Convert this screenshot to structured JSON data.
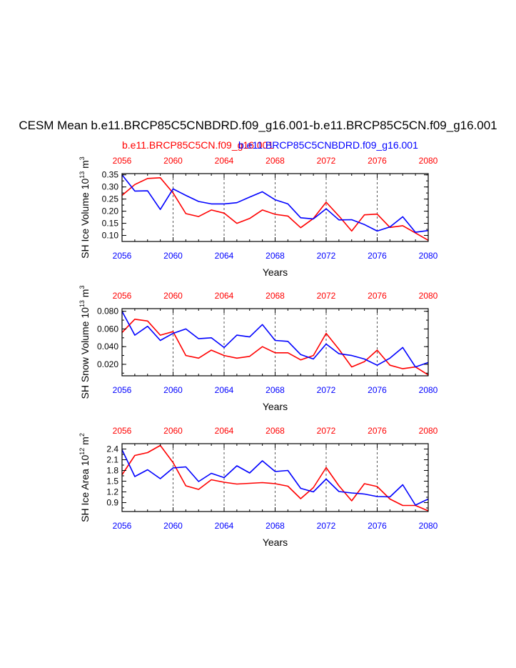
{
  "page": {
    "title": "CESM Mean b.e11.BRCP85C5CNBDRD.f09_g16.001-b.e11.BRCP85C5CN.f09_g16.001",
    "legend": [
      {
        "name": "b.e11.BRCP85C5CN.f09_g16.001",
        "color": "#ff0000"
      },
      {
        "name": "b.e11.BRCP85C5CNBDRD.f09_g16.001",
        "color": "#0000ff"
      }
    ]
  },
  "chart_data": [
    {
      "type": "line",
      "title": "",
      "xlabel": "Years",
      "ylabel": "SH Ice Volume 10",
      "ylabel_sup": "13",
      "ylabel_unit": " m",
      "ylabel_unit_sup": "3",
      "xlim": [
        2056,
        2080
      ],
      "ylim": [
        0.075,
        0.355
      ],
      "yticks": [
        "0.35",
        "0.30",
        "0.25",
        "0.20",
        "0.15",
        "0.10"
      ],
      "xticks": [
        "2056",
        "2060",
        "2064",
        "2068",
        "2072",
        "2076",
        "2080"
      ],
      "x": [
        2056,
        2057,
        2058,
        2059,
        2060,
        2061,
        2062,
        2063,
        2064,
        2065,
        2066,
        2067,
        2068,
        2069,
        2070,
        2071,
        2072,
        2073,
        2074,
        2075,
        2076,
        2077,
        2078,
        2079,
        2080
      ],
      "series": [
        {
          "name": "b.e11.BRCP85C5CN.f09_g16.001",
          "color": "#ff0000",
          "values": [
            0.265,
            0.31,
            0.335,
            0.338,
            0.275,
            0.19,
            0.178,
            0.205,
            0.192,
            0.15,
            0.17,
            0.205,
            0.187,
            0.18,
            0.132,
            0.17,
            0.237,
            0.18,
            0.118,
            0.185,
            0.188,
            0.133,
            0.14,
            0.11,
            0.08
          ]
        },
        {
          "name": "b.e11.BRCP85C5CNBDRD.f09_g16.001",
          "color": "#0000ff",
          "values": [
            0.35,
            0.283,
            0.284,
            0.207,
            0.292,
            0.265,
            0.24,
            0.23,
            0.23,
            0.235,
            0.258,
            0.28,
            0.247,
            0.23,
            0.173,
            0.168,
            0.21,
            0.164,
            0.165,
            0.145,
            0.118,
            0.135,
            0.177,
            0.113,
            0.12
          ]
        }
      ]
    },
    {
      "type": "line",
      "title": "",
      "xlabel": "Years",
      "ylabel": "SH Snow Volume 10",
      "ylabel_sup": "13",
      "ylabel_unit": " m",
      "ylabel_unit_sup": "3",
      "xlim": [
        2056,
        2080
      ],
      "ylim": [
        0.007,
        0.083
      ],
      "yticks": [
        "0.080",
        "0.060",
        "0.040",
        "0.020"
      ],
      "xticks": [
        "2056",
        "2060",
        "2064",
        "2068",
        "2072",
        "2076",
        "2080"
      ],
      "x": [
        2056,
        2057,
        2058,
        2059,
        2060,
        2061,
        2062,
        2063,
        2064,
        2065,
        2066,
        2067,
        2068,
        2069,
        2070,
        2071,
        2072,
        2073,
        2074,
        2075,
        2076,
        2077,
        2078,
        2079,
        2080
      ],
      "series": [
        {
          "name": "b.e11.BRCP85C5CN.f09_g16.001",
          "color": "#ff0000",
          "values": [
            0.056,
            0.071,
            0.069,
            0.053,
            0.057,
            0.03,
            0.027,
            0.036,
            0.03,
            0.027,
            0.029,
            0.04,
            0.033,
            0.033,
            0.025,
            0.03,
            0.055,
            0.037,
            0.017,
            0.023,
            0.036,
            0.019,
            0.015,
            0.017,
            0.008
          ]
        },
        {
          "name": "b.e11.BRCP85C5CNBDRD.f09_g16.001",
          "color": "#0000ff",
          "values": [
            0.08,
            0.053,
            0.063,
            0.047,
            0.055,
            0.06,
            0.049,
            0.05,
            0.039,
            0.053,
            0.051,
            0.065,
            0.047,
            0.046,
            0.031,
            0.026,
            0.043,
            0.032,
            0.03,
            0.026,
            0.019,
            0.027,
            0.039,
            0.017,
            0.022
          ]
        }
      ]
    },
    {
      "type": "line",
      "title": "",
      "xlabel": "Years",
      "ylabel": "SH Ice Area 10",
      "ylabel_sup": "12",
      "ylabel_unit": " m",
      "ylabel_unit_sup": "2",
      "xlim": [
        2056,
        2080
      ],
      "ylim": [
        0.65,
        2.55
      ],
      "yticks": [
        "2.4",
        "2.1",
        "1.8",
        "1.5",
        "1.2",
        "0.9"
      ],
      "xticks": [
        "2056",
        "2060",
        "2064",
        "2068",
        "2072",
        "2076",
        "2080"
      ],
      "x": [
        2056,
        2057,
        2058,
        2059,
        2060,
        2061,
        2062,
        2063,
        2064,
        2065,
        2066,
        2067,
        2068,
        2069,
        2070,
        2071,
        2072,
        2073,
        2074,
        2075,
        2076,
        2077,
        2078,
        2079,
        2080
      ],
      "series": [
        {
          "name": "b.e11.BRCP85C5CN.f09_g16.001",
          "color": "#ff0000",
          "values": [
            1.68,
            2.22,
            2.3,
            2.5,
            2.02,
            1.37,
            1.27,
            1.54,
            1.47,
            1.42,
            1.44,
            1.46,
            1.43,
            1.36,
            1.01,
            1.32,
            1.88,
            1.37,
            0.95,
            1.43,
            1.35,
            1.0,
            0.82,
            0.82,
            0.67
          ]
        },
        {
          "name": "b.e11.BRCP85C5CNBDRD.f09_g16.001",
          "color": "#0000ff",
          "values": [
            2.38,
            1.63,
            1.82,
            1.57,
            1.87,
            1.9,
            1.49,
            1.72,
            1.6,
            1.93,
            1.73,
            2.07,
            1.77,
            1.8,
            1.3,
            1.2,
            1.56,
            1.21,
            1.17,
            1.14,
            1.07,
            1.06,
            1.4,
            0.83,
            1.0
          ]
        }
      ]
    }
  ]
}
